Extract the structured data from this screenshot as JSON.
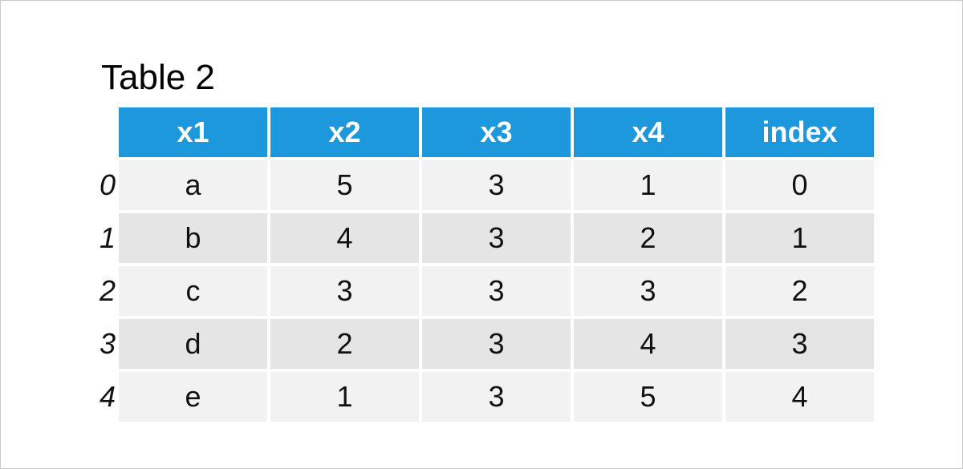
{
  "title": "Table 2",
  "table": {
    "columns": [
      "x1",
      "x2",
      "x3",
      "x4",
      "index"
    ],
    "index": [
      0,
      1,
      2,
      3,
      4
    ],
    "rows": [
      [
        "a",
        5,
        3,
        1,
        0
      ],
      [
        "b",
        4,
        3,
        2,
        1
      ],
      [
        "c",
        3,
        3,
        3,
        2
      ],
      [
        "d",
        2,
        3,
        4,
        3
      ],
      [
        "e",
        1,
        3,
        5,
        4
      ]
    ]
  }
}
